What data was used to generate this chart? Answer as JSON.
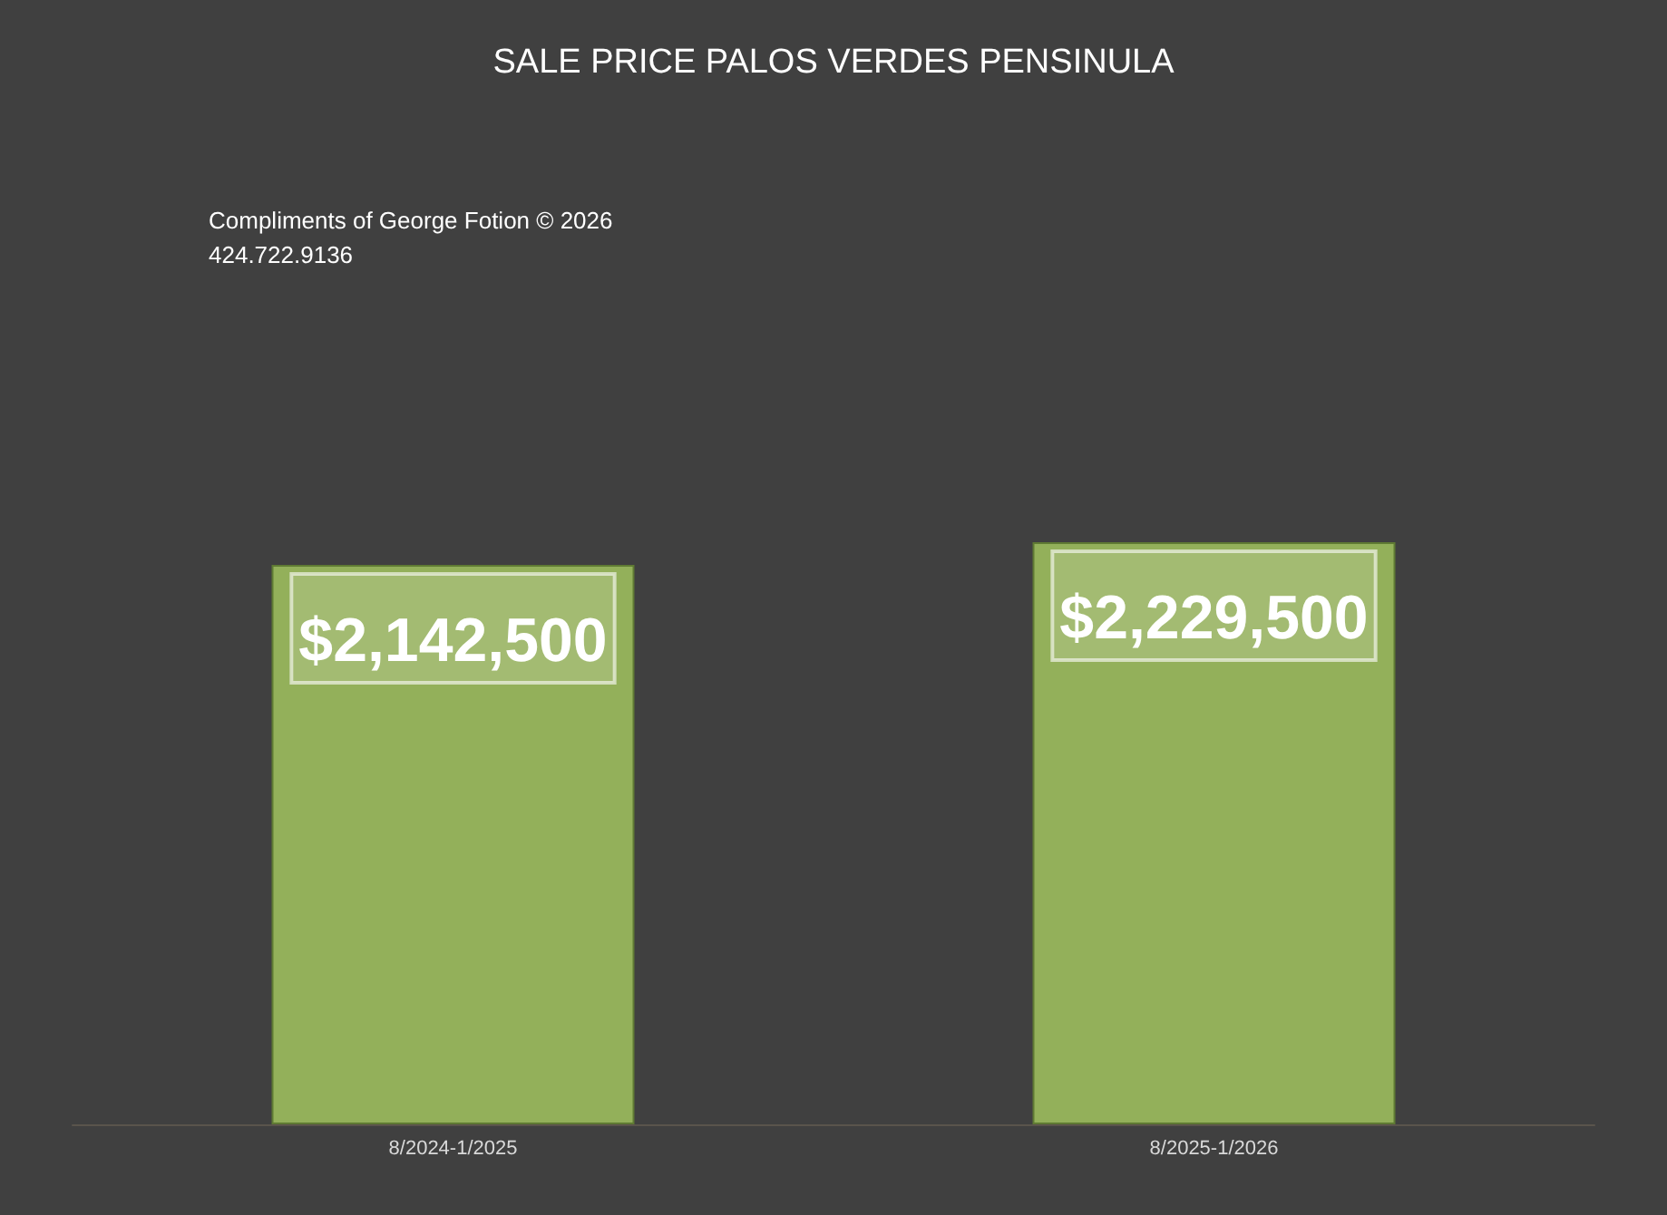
{
  "chart_data": {
    "type": "bar",
    "title": "SALE PRICE PALOS VERDES PENSINULA",
    "categories": [
      "8/2024-1/2025",
      "8/2025-1/2026"
    ],
    "values": [
      2142500,
      2229500
    ],
    "value_labels": [
      "$2,142,500",
      "$2,229,500"
    ],
    "color": "#93b05a",
    "annotations": [
      "Compliments of George Fotion © 2026",
      "424.722.9136"
    ]
  }
}
